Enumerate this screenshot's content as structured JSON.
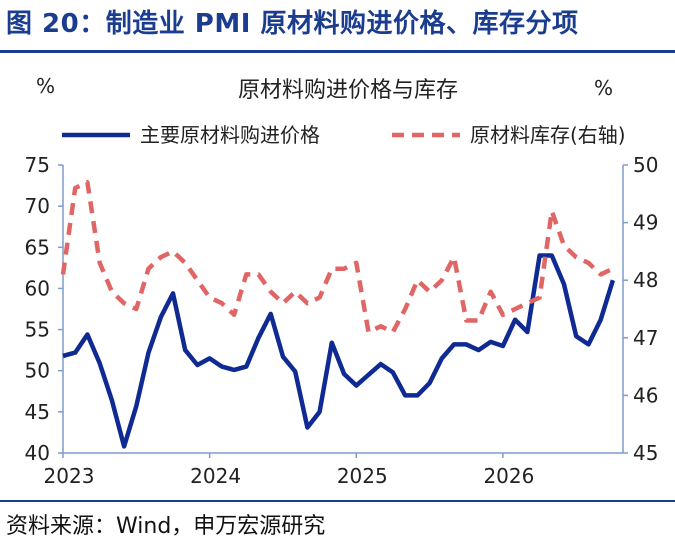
{
  "figure": {
    "title": "图 20：制造业 PMI 原材料购进价格、库存分项",
    "source": "资料来源：Wind，申万宏源研究"
  },
  "colors": {
    "title": "#1b3d8f",
    "series_main": "#0f2a92",
    "series_secondary": "#e06666",
    "axis": "#7f9ccf",
    "rule": "#1b3d8f"
  },
  "chart_data": {
    "type": "line",
    "title": "原材料购进价格与库存",
    "y_left_unit": "%",
    "y_right_unit": "%",
    "ylim_left": [
      40,
      75
    ],
    "yticks_left": [
      40,
      45,
      50,
      55,
      60,
      65,
      70,
      75
    ],
    "ylim_right": [
      45,
      50
    ],
    "yticks_right": [
      45,
      46,
      47,
      48,
      49,
      50
    ],
    "x_ticks": [
      "2023",
      "2024",
      "2025",
      "2026"
    ],
    "x_tick_indices": [
      0,
      12,
      24,
      36
    ],
    "legend_position": "top",
    "grid": false,
    "series": [
      {
        "name": "主要原材料购进价格",
        "axis": "left",
        "style": "solid",
        "values": [
          51.8,
          52.2,
          54.4,
          50.9,
          46.4,
          40.8,
          45.7,
          52.2,
          56.5,
          59.4,
          52.5,
          50.7,
          51.5,
          50.5,
          50.1,
          50.5,
          54.0,
          56.9,
          51.7,
          49.9,
          43.1,
          45.0,
          53.4,
          49.6,
          48.2,
          49.5,
          50.8,
          49.8,
          47.0,
          47.0,
          48.5,
          51.5,
          53.2,
          53.2,
          52.5,
          53.5,
          53.0,
          56.2,
          54.7,
          64.0,
          64.0,
          60.5,
          54.2,
          53.2,
          56.2,
          61.0
        ]
      },
      {
        "name": "原材料库存(右轴)",
        "axis": "right",
        "style": "dashed",
        "values": [
          48.1,
          49.6,
          49.7,
          48.3,
          47.8,
          47.6,
          47.5,
          48.2,
          48.4,
          48.5,
          48.3,
          48.0,
          47.7,
          47.6,
          47.4,
          48.1,
          48.1,
          47.8,
          47.6,
          47.8,
          47.6,
          47.7,
          48.2,
          48.2,
          48.3,
          47.1,
          47.2,
          47.1,
          47.5,
          48.0,
          47.8,
          48.0,
          48.4,
          47.3,
          47.3,
          47.8,
          47.4,
          47.5,
          47.6,
          47.7,
          49.2,
          48.6,
          48.4,
          48.3,
          48.1,
          48.2
        ]
      }
    ]
  }
}
